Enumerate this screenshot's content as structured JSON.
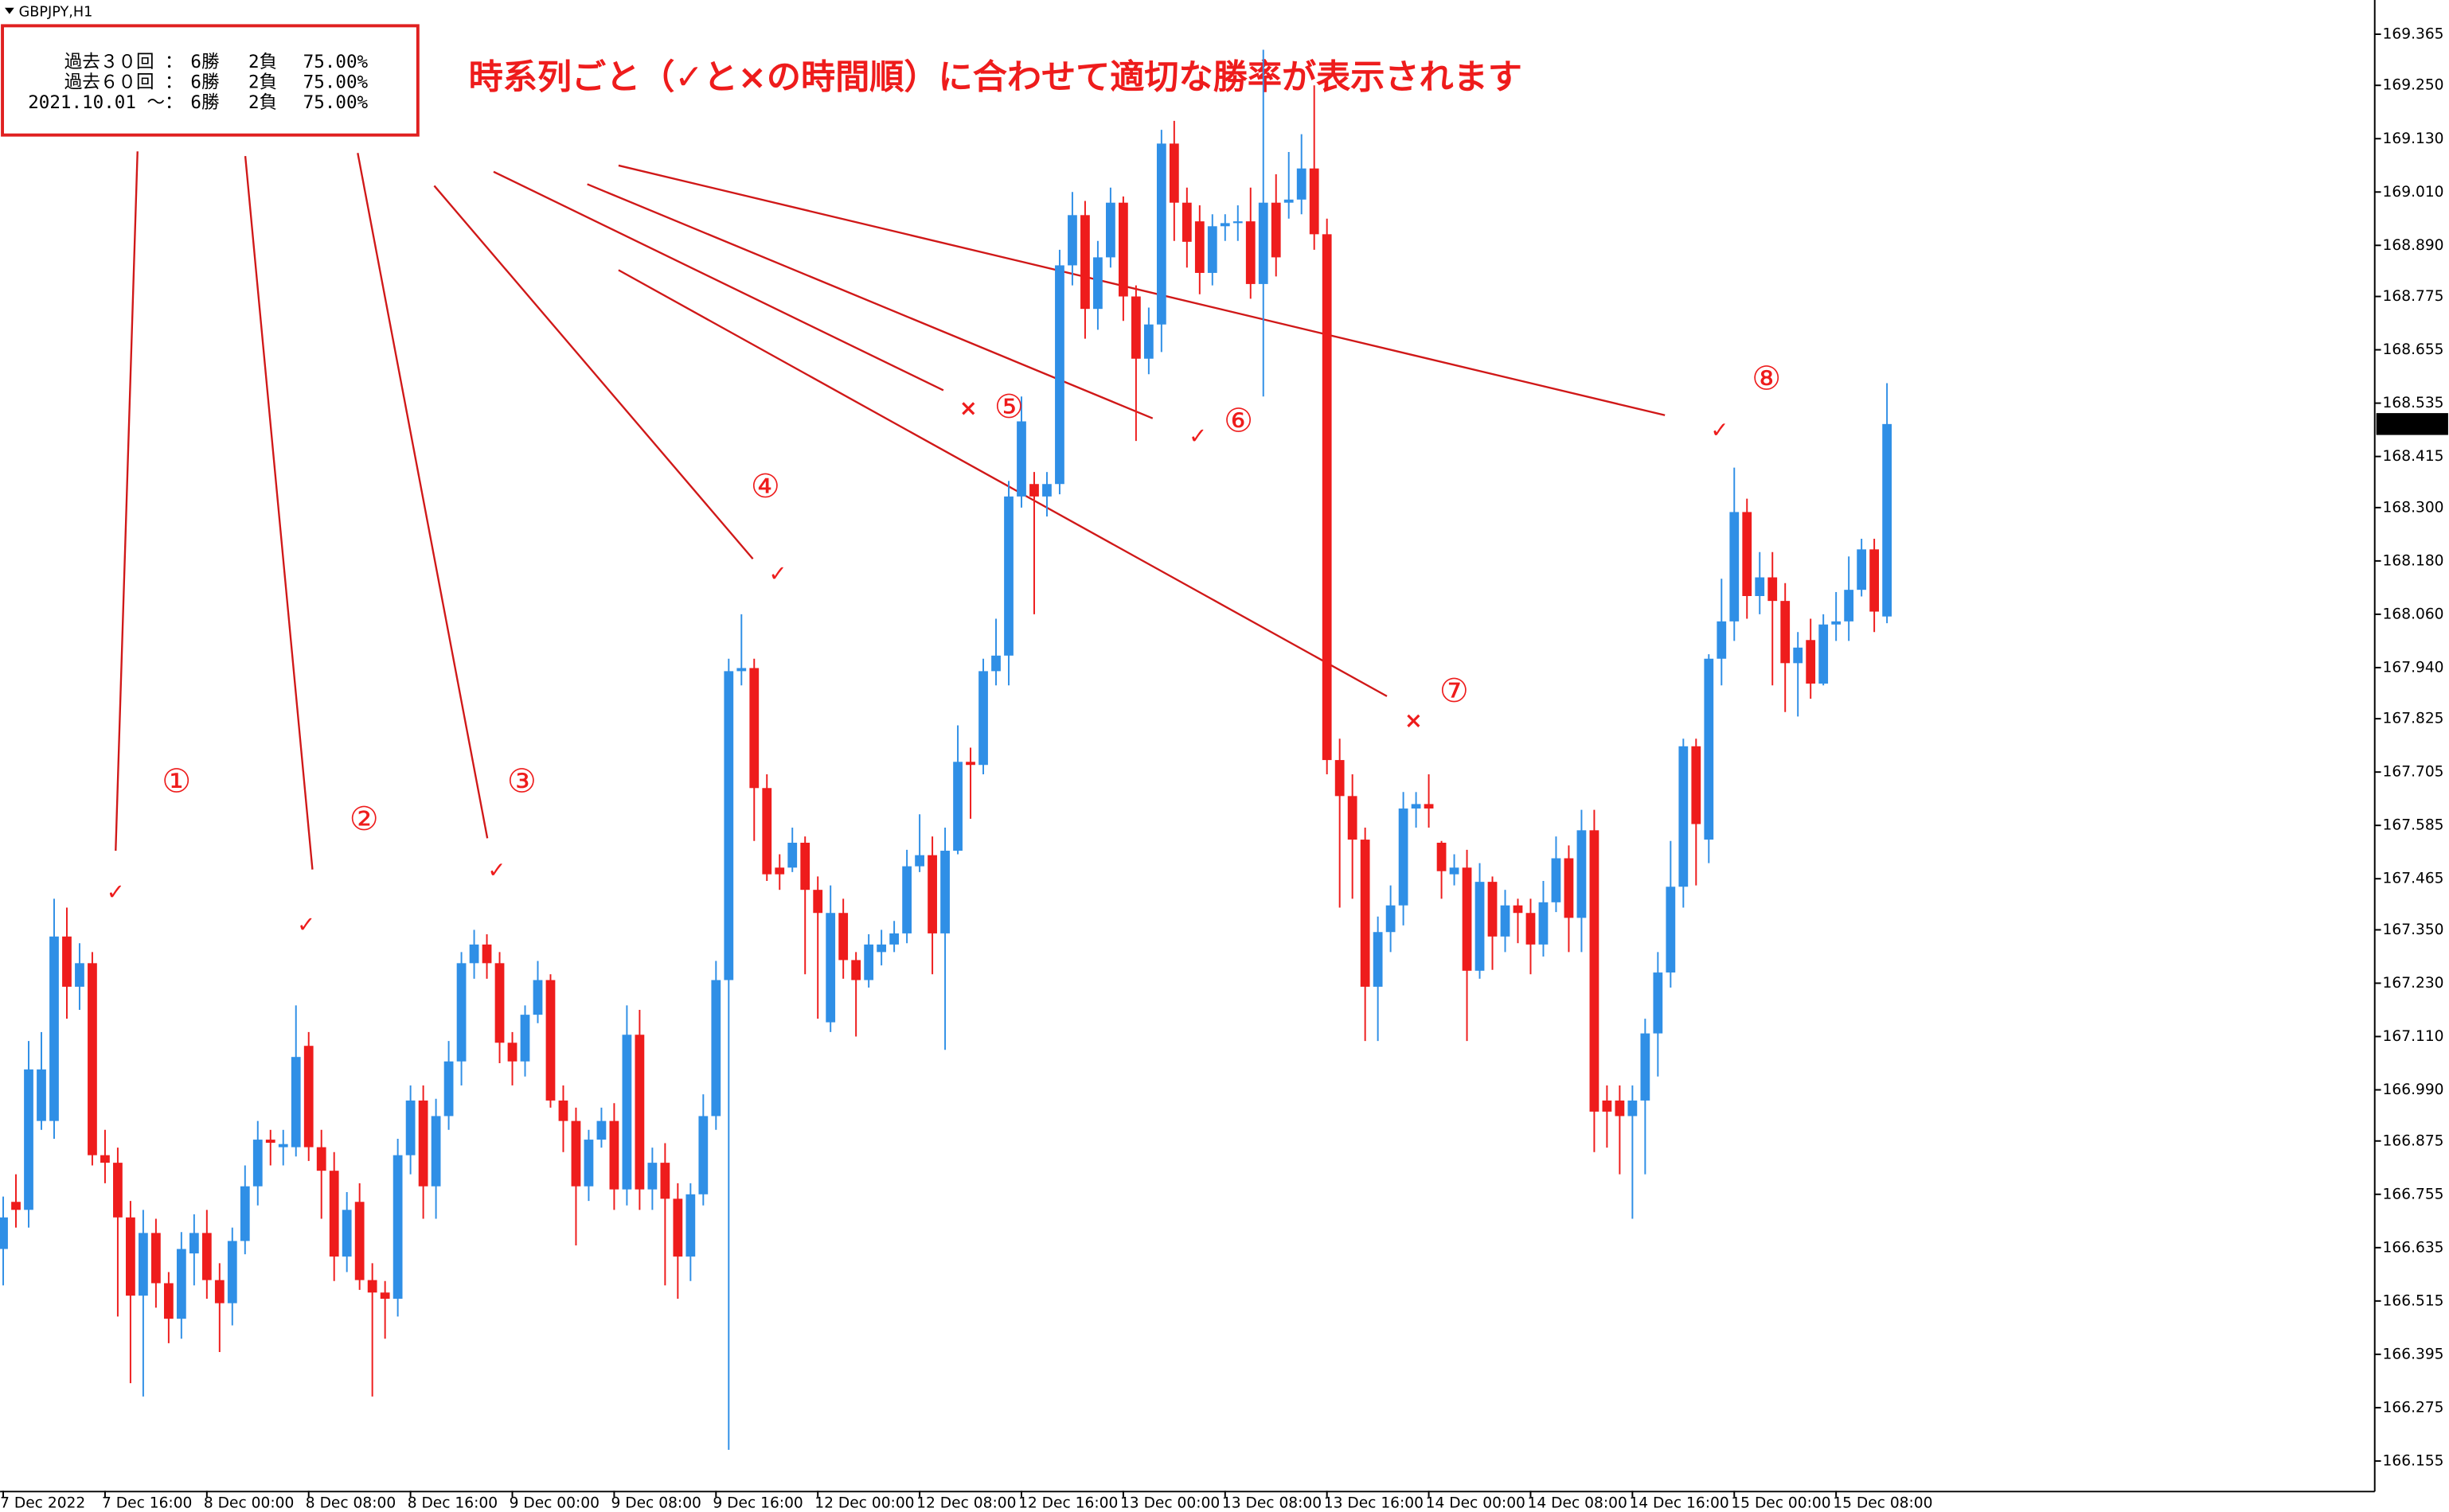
{
  "chart_data": {
    "type": "candlestick",
    "title": "GBPJPY,H1",
    "colors": {
      "up": "#2f8fe6",
      "down": "#ee1c1c"
    },
    "ylim": [
      166.088,
      169.442
    ],
    "yticks": [
      {
        "value": 169.365,
        "label": "169.365"
      },
      {
        "value": 169.25,
        "label": "169.250"
      },
      {
        "value": 169.13,
        "label": "169.130"
      },
      {
        "value": 169.01,
        "label": "169.010"
      },
      {
        "value": 168.89,
        "label": "168.890"
      },
      {
        "value": 168.775,
        "label": "168.775"
      },
      {
        "value": 168.655,
        "label": "168.655"
      },
      {
        "value": 168.535,
        "label": "168.535"
      },
      {
        "value": 168.415,
        "label": "168.415"
      },
      {
        "value": 168.3,
        "label": "168.300"
      },
      {
        "value": 168.18,
        "label": "168.180"
      },
      {
        "value": 168.06,
        "label": "168.060"
      },
      {
        "value": 167.94,
        "label": "167.940"
      },
      {
        "value": 167.825,
        "label": "167.825"
      },
      {
        "value": 167.705,
        "label": "167.705"
      },
      {
        "value": 167.585,
        "label": "167.585"
      },
      {
        "value": 167.465,
        "label": "167.465"
      },
      {
        "value": 167.35,
        "label": "167.350"
      },
      {
        "value": 167.23,
        "label": "167.230"
      },
      {
        "value": 167.11,
        "label": "167.110"
      },
      {
        "value": 166.99,
        "label": "166.990"
      },
      {
        "value": 166.875,
        "label": "166.875"
      },
      {
        "value": 166.755,
        "label": "166.755"
      },
      {
        "value": 166.635,
        "label": "166.635"
      },
      {
        "value": 166.515,
        "label": "166.515"
      },
      {
        "value": 166.395,
        "label": "166.395"
      },
      {
        "value": 166.275,
        "label": "166.275"
      },
      {
        "value": 166.155,
        "label": "166.155"
      }
    ],
    "xticks": [
      {
        "value": 0,
        "label": "7 Dec 2022"
      },
      {
        "value": 8,
        "label": "7 Dec 16:00"
      },
      {
        "value": 16,
        "label": "8 Dec 00:00"
      },
      {
        "value": 24,
        "label": "8 Dec 08:00"
      },
      {
        "value": 32,
        "label": "8 Dec 16:00"
      },
      {
        "value": 40,
        "label": "9 Dec 00:00"
      },
      {
        "value": 48,
        "label": "9 Dec 08:00"
      },
      {
        "value": 56,
        "label": "9 Dec 16:00"
      },
      {
        "value": 64,
        "label": "12 Dec 00:00"
      },
      {
        "value": 72,
        "label": "12 Dec 08:00"
      },
      {
        "value": 80,
        "label": "12 Dec 16:00"
      },
      {
        "value": 88,
        "label": "13 Dec 00:00"
      },
      {
        "value": 96,
        "label": "13 Dec 08:00"
      },
      {
        "value": 104,
        "label": "13 Dec 16:00"
      },
      {
        "value": 112,
        "label": "14 Dec 00:00"
      },
      {
        "value": 120,
        "label": "14 Dec 08:00"
      },
      {
        "value": 128,
        "label": "14 Dec 16:00"
      },
      {
        "value": 136,
        "label": "15 Dec 00:00"
      },
      {
        "value": 144,
        "label": "15 Dec 08:00"
      }
    ],
    "open": [
      166.632,
      166.738,
      166.72,
      166.92,
      166.92,
      167.335,
      167.222,
      167.275,
      166.843,
      166.826,
      166.703,
      166.527,
      166.668,
      166.555,
      166.475,
      166.622,
      166.668,
      166.562,
      166.51,
      166.65,
      166.773,
      166.878,
      166.861,
      166.861,
      167.089,
      166.861,
      166.808,
      166.615,
      166.738,
      166.562,
      166.534,
      166.52,
      166.843,
      166.966,
      166.773,
      166.931,
      167.054,
      167.275,
      167.317,
      167.275,
      167.096,
      167.054,
      167.159,
      167.237,
      166.966,
      166.92,
      166.773,
      166.878,
      166.92,
      166.766,
      167.114,
      166.766,
      166.826,
      166.745,
      166.615,
      166.755,
      166.931,
      167.237,
      167.932,
      167.939,
      167.669,
      167.49,
      167.49,
      167.546,
      167.44,
      167.142,
      167.388,
      167.282,
      167.237,
      167.3,
      167.317,
      167.342,
      167.493,
      167.518,
      167.342,
      167.528,
      167.728,
      167.721,
      167.932,
      167.967,
      168.325,
      168.353,
      168.325,
      168.353,
      168.845,
      168.958,
      168.747,
      168.863,
      168.986,
      168.775,
      168.635,
      168.712,
      169.119,
      168.986,
      168.944,
      168.828,
      168.933,
      168.94,
      168.944,
      168.803,
      168.986,
      168.986,
      168.993,
      169.063,
      168.915,
      167.732,
      167.651,
      167.553,
      167.222,
      167.345,
      167.405,
      167.623,
      167.633,
      167.546,
      167.475,
      167.49,
      167.258,
      167.458,
      167.335,
      167.405,
      167.388,
      167.317,
      167.412,
      167.511,
      167.377,
      167.574,
      166.966,
      166.966,
      166.931,
      166.966,
      167.117,
      167.254,
      167.447,
      167.763,
      167.553,
      167.96,
      168.044,
      168.29,
      168.101,
      168.143,
      168.09,
      167.95,
      168.002,
      167.904,
      168.037,
      168.044,
      168.115,
      168.206,
      168.055
    ],
    "high": [
      166.75,
      166.8,
      167.1,
      167.12,
      167.42,
      167.4,
      167.32,
      167.3,
      166.9,
      166.86,
      166.74,
      166.72,
      166.7,
      166.58,
      166.67,
      166.71,
      166.72,
      166.6,
      166.68,
      166.82,
      166.92,
      166.9,
      166.9,
      167.18,
      167.12,
      166.9,
      166.85,
      166.76,
      166.78,
      166.6,
      166.56,
      166.88,
      167.0,
      167.0,
      166.97,
      167.1,
      167.3,
      167.35,
      167.34,
      167.3,
      167.12,
      167.18,
      167.28,
      167.25,
      167.0,
      166.95,
      166.9,
      166.95,
      166.96,
      167.18,
      167.17,
      166.86,
      166.87,
      166.78,
      166.78,
      166.98,
      167.28,
      167.96,
      168.06,
      167.96,
      167.7,
      167.52,
      167.58,
      167.56,
      167.47,
      167.45,
      167.42,
      167.3,
      167.34,
      167.35,
      167.37,
      167.53,
      167.61,
      167.56,
      167.58,
      167.81,
      167.76,
      167.96,
      168.05,
      168.36,
      168.55,
      168.38,
      168.38,
      168.88,
      169.01,
      168.99,
      168.9,
      169.02,
      169.0,
      168.8,
      168.75,
      169.15,
      169.17,
      169.02,
      168.98,
      168.96,
      168.96,
      168.98,
      169.02,
      169.33,
      169.05,
      169.1,
      169.14,
      169.25,
      168.95,
      167.78,
      167.7,
      167.58,
      167.38,
      167.45,
      167.66,
      167.66,
      167.7,
      167.55,
      167.52,
      167.53,
      167.5,
      167.47,
      167.44,
      167.42,
      167.42,
      167.46,
      167.56,
      167.54,
      167.62,
      167.62,
      167.0,
      167.0,
      167.0,
      167.15,
      167.3,
      167.55,
      167.78,
      167.78,
      167.97,
      168.14,
      168.39,
      168.32,
      168.2,
      168.2,
      168.13,
      168.02,
      168.05,
      168.06,
      168.11,
      168.19,
      168.23,
      168.23,
      168.58
    ],
    "low": [
      166.55,
      166.68,
      166.68,
      166.9,
      166.88,
      167.15,
      167.17,
      166.82,
      166.78,
      166.48,
      166.33,
      166.3,
      166.5,
      166.42,
      166.43,
      166.55,
      166.52,
      166.4,
      166.46,
      166.62,
      166.73,
      166.82,
      166.82,
      166.84,
      166.83,
      166.7,
      166.56,
      166.58,
      166.54,
      166.3,
      166.43,
      166.48,
      166.8,
      166.7,
      166.7,
      166.9,
      167.0,
      167.24,
      167.24,
      167.05,
      167.0,
      167.02,
      167.14,
      166.95,
      166.85,
      166.64,
      166.74,
      166.86,
      166.72,
      166.73,
      166.72,
      166.72,
      166.55,
      166.52,
      166.56,
      166.73,
      166.9,
      166.18,
      167.9,
      167.55,
      167.46,
      167.44,
      167.48,
      167.25,
      167.15,
      167.12,
      167.24,
      167.11,
      167.22,
      167.27,
      167.3,
      167.32,
      167.48,
      167.25,
      167.08,
      167.52,
      167.6,
      167.7,
      167.9,
      167.9,
      168.3,
      168.06,
      168.28,
      168.33,
      168.8,
      168.68,
      168.7,
      168.84,
      168.72,
      168.45,
      168.6,
      168.65,
      168.9,
      168.84,
      168.78,
      168.8,
      168.9,
      168.9,
      168.77,
      168.55,
      168.82,
      168.95,
      168.96,
      168.88,
      167.7,
      167.4,
      167.42,
      167.1,
      167.1,
      167.3,
      167.36,
      167.58,
      167.58,
      167.42,
      167.45,
      167.1,
      167.24,
      167.26,
      167.3,
      167.32,
      167.25,
      167.29,
      167.39,
      167.3,
      167.3,
      166.85,
      166.86,
      166.8,
      166.7,
      166.8,
      167.02,
      167.22,
      167.4,
      167.45,
      167.5,
      167.9,
      168.0,
      168.05,
      168.06,
      167.9,
      167.84,
      167.83,
      167.87,
      167.9,
      168.0,
      168.0,
      168.1,
      168.02,
      168.04
    ],
    "close": [
      166.703,
      166.72,
      167.036,
      167.036,
      167.335,
      167.222,
      167.275,
      166.843,
      166.826,
      166.703,
      166.527,
      166.668,
      166.555,
      166.475,
      166.632,
      166.668,
      166.562,
      166.51,
      166.65,
      166.773,
      166.878,
      166.871,
      166.868,
      167.064,
      166.861,
      166.808,
      166.615,
      166.72,
      166.562,
      166.534,
      166.52,
      166.843,
      166.966,
      166.773,
      166.931,
      167.054,
      167.275,
      167.317,
      167.275,
      167.096,
      167.054,
      167.159,
      167.237,
      166.966,
      166.92,
      166.773,
      166.878,
      166.92,
      166.766,
      167.114,
      166.766,
      166.826,
      166.745,
      166.615,
      166.755,
      166.931,
      167.237,
      167.932,
      167.939,
      167.669,
      167.475,
      167.475,
      167.546,
      167.44,
      167.388,
      167.388,
      167.282,
      167.237,
      167.317,
      167.317,
      167.342,
      167.493,
      167.518,
      167.342,
      167.528,
      167.728,
      167.721,
      167.932,
      167.967,
      168.325,
      168.494,
      168.325,
      168.353,
      168.845,
      168.958,
      168.747,
      168.863,
      168.986,
      168.775,
      168.635,
      168.712,
      169.119,
      168.986,
      168.898,
      168.828,
      168.933,
      168.94,
      168.944,
      168.803,
      168.986,
      168.863,
      168.993,
      169.063,
      168.915,
      167.732,
      167.651,
      167.553,
      167.222,
      167.345,
      167.405,
      167.623,
      167.633,
      167.623,
      167.482,
      167.49,
      167.258,
      167.458,
      167.335,
      167.405,
      167.388,
      167.317,
      167.412,
      167.511,
      167.377,
      167.574,
      166.941,
      166.941,
      166.931,
      166.966,
      167.117,
      167.254,
      167.447,
      167.763,
      167.588,
      167.96,
      168.044,
      168.29,
      168.101,
      168.143,
      168.09,
      167.95,
      167.985,
      167.904,
      168.037,
      168.044,
      168.115,
      168.206,
      168.066,
      168.488
    ]
  },
  "overlay": {
    "headline": "時系列ごと（✓と×の時間順）に合わせて適切な勝率が表示されます",
    "stats": [
      [
        "過去３０回 ：",
        "6勝",
        "2負",
        "75.00%"
      ],
      [
        "過去６０回 ：",
        "6勝",
        "2負",
        "75.00%"
      ],
      [
        "2021.10.01 ～：",
        "6勝",
        "2負",
        "75.00%"
      ]
    ],
    "annotations": [
      {
        "label": "①",
        "mark": "✓"
      },
      {
        "label": "②",
        "mark": "✓"
      },
      {
        "label": "③",
        "mark": "✓"
      },
      {
        "label": "④",
        "mark": "✓"
      },
      {
        "label": "⑤",
        "mark": "×"
      },
      {
        "label": "⑥",
        "mark": "✓"
      },
      {
        "label": "⑦",
        "mark": "×"
      },
      {
        "label": "⑧",
        "mark": "✓"
      }
    ]
  }
}
